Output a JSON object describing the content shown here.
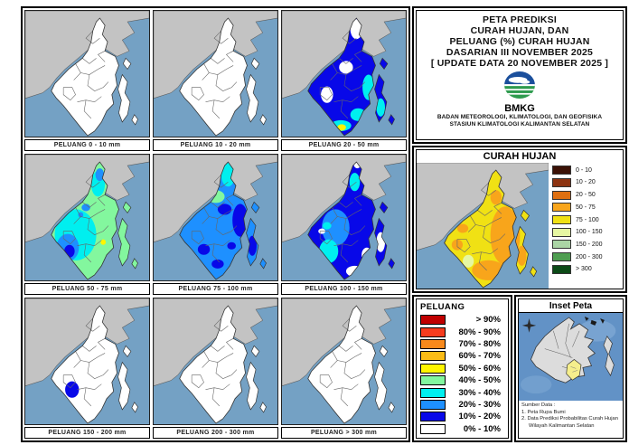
{
  "header": {
    "title_lines": [
      "PETA PREDIKSI",
      "CURAH HUJAN, DAN",
      "PELUANG (%) CURAH HUJAN",
      "DASARIAN III NOVEMBER 2025",
      "[ UPDATE DATA 20 NOVEMBER 2025 ]"
    ],
    "logo_text": "BMKG",
    "agency_lines": [
      "BADAN METEOROLOGI, KLIMATOLOGI, DAN GEOFISIKA",
      "STASIUN KLIMATOLOGI KALIMANTAN SELATAN"
    ]
  },
  "map_colors": {
    "sea": "#74A1C4",
    "land": "#C3C3C3",
    "outline": "#333333",
    "district": "#666666",
    "inset_sea": "#6292C6",
    "inset_sea_light": "#82ABD6",
    "inset_land": "#DCDCDC",
    "inset_highlight": "#F5EE8C"
  },
  "maps": [
    {
      "caption": "PELUANG 0 - 10 mm",
      "base": "p0"
    },
    {
      "caption": "PELUANG 10 - 20 mm",
      "base": "p0"
    },
    {
      "caption": "PELUANG 20 - 50 mm",
      "base": "p10_20"
    },
    {
      "caption": "PELUANG 50 - 75 mm",
      "base": "p40_50"
    },
    {
      "caption": "PELUANG 75 - 100 mm",
      "base": "p20_30"
    },
    {
      "caption": "PELUANG 100 - 150 mm",
      "base": "p10_20"
    },
    {
      "caption": "PELUANG 150 - 200 mm",
      "base": "p0"
    },
    {
      "caption": "PELUANG 200 - 300 mm",
      "base": "p0"
    },
    {
      "caption": "PELUANG > 300 mm",
      "base": "p0"
    }
  ],
  "curah_hujan": {
    "title": "CURAH HUJAN",
    "base": "c75_100",
    "legend": [
      {
        "key": "c0_10",
        "label": "0 - 10",
        "color": "#3B1106"
      },
      {
        "key": "c10_20",
        "label": "10 - 20",
        "color": "#8D3311"
      },
      {
        "key": "c20_50",
        "label": "20 - 50",
        "color": "#DE6F10"
      },
      {
        "key": "c50_75",
        "label": "50 - 75",
        "color": "#F8A51B"
      },
      {
        "key": "c75_100",
        "label": "75 - 100",
        "color": "#F0E114"
      },
      {
        "key": "c100_150",
        "label": "100 - 150",
        "color": "#E6F7A2"
      },
      {
        "key": "c150_200",
        "label": "150 - 200",
        "color": "#ABD5A5"
      },
      {
        "key": "c200_300",
        "label": "200 - 300",
        "color": "#4F9E51"
      },
      {
        "key": "c300",
        "label": "> 300",
        "color": "#0C4A17"
      }
    ]
  },
  "peluang_legend": {
    "title": "PELUANG",
    "entries": [
      {
        "key": "p90",
        "label": "> 90%",
        "color": "#C00000"
      },
      {
        "key": "p80_90",
        "label": "80% - 90%",
        "color": "#F63C1E"
      },
      {
        "key": "p70_80",
        "label": "70% - 80%",
        "color": "#F8891C"
      },
      {
        "key": "p60_70",
        "label": "60% - 70%",
        "color": "#FBBC16"
      },
      {
        "key": "p50_60",
        "label": "50% - 60%",
        "color": "#FFF500"
      },
      {
        "key": "p40_50",
        "label": "40% - 50%",
        "color": "#83F79E"
      },
      {
        "key": "p30_40",
        "label": "30% - 40%",
        "color": "#00EFEF"
      },
      {
        "key": "p20_30",
        "label": "20% - 30%",
        "color": "#1E90FF"
      },
      {
        "key": "p10_20",
        "label": "10% - 20%",
        "color": "#0808E8"
      },
      {
        "key": "p0",
        "label": "0% - 10%",
        "color": "#FFFFFF"
      }
    ]
  },
  "inset": {
    "title": "Inset Peta",
    "source_lines": [
      "Sumber Data :",
      "1. Peta Rupa Bumi",
      "2. Data Prediksi Probabilitas Curah Hujan",
      "Wilayah Kalimantan Selatan"
    ]
  }
}
